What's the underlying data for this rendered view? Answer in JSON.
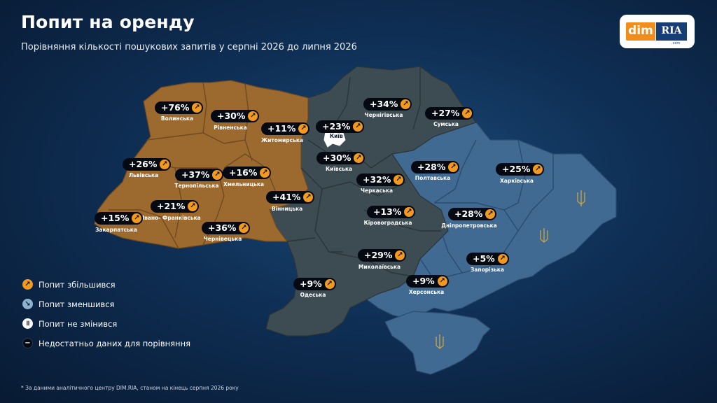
{
  "header": {
    "title": "Попит на оренду",
    "subtitle": "Порівняння кількості пошукових запитів у серпні 2026 до липня 2026"
  },
  "logo": {
    "dim": "dim",
    "ria": "RIA",
    "com": ".com"
  },
  "colors": {
    "west": "#9c6a2f",
    "center": "#3d4c52",
    "east": "#406a92",
    "accent": "#f29a1f",
    "badge_bg": "#050a12"
  },
  "regions": [
    {
      "name": "Волинська",
      "change": "+76%",
      "trend": "up"
    },
    {
      "name": "Рівненська",
      "change": "+30%",
      "trend": "up"
    },
    {
      "name": "Житомирська",
      "change": "+11%",
      "trend": "up"
    },
    {
      "name": "Київ",
      "change": "+23%",
      "trend": "up"
    },
    {
      "name": "Чернігівська",
      "change": "+34%",
      "trend": "up"
    },
    {
      "name": "Сумська",
      "change": "+27%",
      "trend": "up"
    },
    {
      "name": "Львівська",
      "change": "+26%",
      "trend": "up"
    },
    {
      "name": "Тернопільська",
      "change": "+37%",
      "trend": "up"
    },
    {
      "name": "Хмельницька",
      "change": "+16%",
      "trend": "up"
    },
    {
      "name": "Київська",
      "change": "+30%",
      "trend": "up"
    },
    {
      "name": "Полтавська",
      "change": "+28%",
      "trend": "up"
    },
    {
      "name": "Харківська",
      "change": "+25%",
      "trend": "up"
    },
    {
      "name": "Черкаська",
      "change": "+32%",
      "trend": "up"
    },
    {
      "name": "Вінницька",
      "change": "+41%",
      "trend": "up"
    },
    {
      "name": "Івано- Франківська",
      "change": "+21%",
      "trend": "up"
    },
    {
      "name": "Закарпатська",
      "change": "+15%",
      "trend": "up"
    },
    {
      "name": "Кіровоградська",
      "change": "+13%",
      "trend": "up"
    },
    {
      "name": "Дніпропетровська",
      "change": "+28%",
      "trend": "up"
    },
    {
      "name": "Чернівецька",
      "change": "+36%",
      "trend": "up"
    },
    {
      "name": "Миколаївська",
      "change": "+29%",
      "trend": "up"
    },
    {
      "name": "Запорізька",
      "change": "+5%",
      "trend": "up"
    },
    {
      "name": "Херсонська",
      "change": "+9%",
      "trend": "up"
    },
    {
      "name": "Одеська",
      "change": "+9%",
      "trend": "up"
    }
  ],
  "legend": [
    {
      "label": "Попит збільшився",
      "icon": "arrow-up-right-icon"
    },
    {
      "label": "Попит зменшився",
      "icon": "arrow-down-right-icon"
    },
    {
      "label": "Попит не змінився",
      "icon": "pause-icon"
    },
    {
      "label": "Недостатньо даних для порівняння",
      "icon": "minus-icon"
    }
  ],
  "footnote": "* За даними аналітичного центру DIM.RIA, станом на кінець серпня 2026 року"
}
